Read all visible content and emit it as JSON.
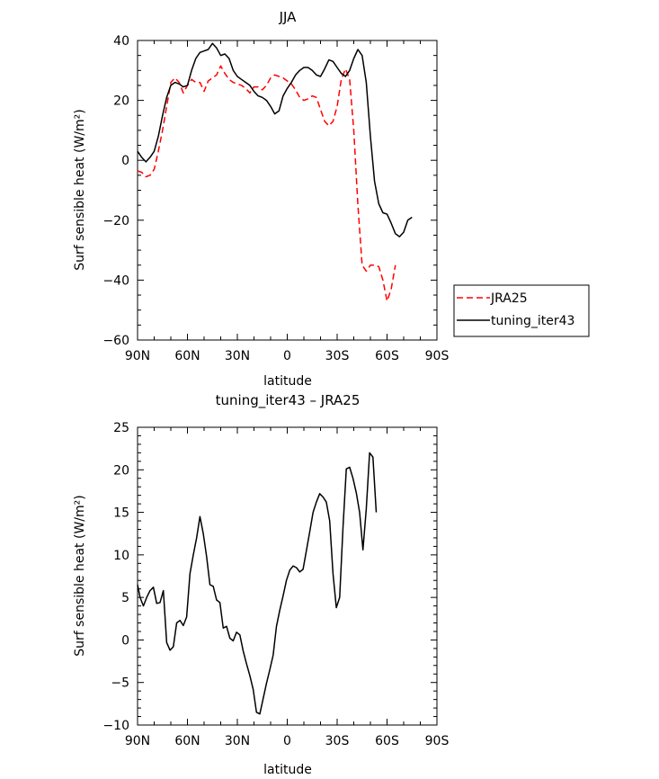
{
  "chart_data": [
    {
      "type": "line",
      "title": "JJA",
      "xlabel": "latitude",
      "ylabel": "Surf sensible heat (W/m²)",
      "xlim": [
        90,
        -90
      ],
      "ylim": [
        -60,
        40
      ],
      "x_ticks": [
        {
          "value": 90,
          "label": "90N"
        },
        {
          "value": 60,
          "label": "60N"
        },
        {
          "value": 30,
          "label": "30N"
        },
        {
          "value": 0,
          "label": "0"
        },
        {
          "value": -30,
          "label": "30S"
        },
        {
          "value": -60,
          "label": "60S"
        },
        {
          "value": -90,
          "label": "90S"
        }
      ],
      "y_ticks": [
        40,
        20,
        0,
        -20,
        -40,
        -60
      ],
      "legend_position": "right",
      "series": [
        {
          "name": "JRA25",
          "color": "#ff0000",
          "dash": "dashed",
          "points": [
            [
              90,
              -3.5
            ],
            [
              87.5,
              -4
            ],
            [
              85,
              -5.5
            ],
            [
              82.5,
              -5
            ],
            [
              80,
              -3
            ],
            [
              77.5,
              3
            ],
            [
              75,
              10
            ],
            [
              72.5,
              18
            ],
            [
              70,
              26
            ],
            [
              67.5,
              27.5
            ],
            [
              65,
              26
            ],
            [
              62.5,
              22.5
            ],
            [
              60,
              25
            ],
            [
              57.5,
              27
            ],
            [
              55,
              26
            ],
            [
              52.5,
              26
            ],
            [
              50,
              23
            ],
            [
              47.5,
              26.5
            ],
            [
              45,
              27.5
            ],
            [
              42.5,
              28.5
            ],
            [
              40,
              31.5
            ],
            [
              37.5,
              29
            ],
            [
              35,
              27
            ],
            [
              32.5,
              26
            ],
            [
              30,
              25.5
            ],
            [
              27.5,
              25
            ],
            [
              25,
              24
            ],
            [
              22.5,
              22.5
            ],
            [
              20,
              24.5
            ],
            [
              17.5,
              24.5
            ],
            [
              15,
              23.5
            ],
            [
              12.5,
              25
            ],
            [
              10,
              27.5
            ],
            [
              7.5,
              28.5
            ],
            [
              5,
              28
            ],
            [
              2.5,
              27.5
            ],
            [
              0,
              26.5
            ],
            [
              -2.5,
              25.5
            ],
            [
              -5,
              23.5
            ],
            [
              -7.5,
              21
            ],
            [
              -10,
              20
            ],
            [
              -12.5,
              20.5
            ],
            [
              -15,
              21.5
            ],
            [
              -17.5,
              21
            ],
            [
              -20,
              17
            ],
            [
              -22.5,
              13
            ],
            [
              -25,
              11.5
            ],
            [
              -27.5,
              13
            ],
            [
              -30,
              18
            ],
            [
              -32.5,
              27
            ],
            [
              -35,
              30.5
            ],
            [
              -37.5,
              27
            ],
            [
              -40,
              10
            ],
            [
              -42.5,
              -15
            ],
            [
              -45,
              -35
            ],
            [
              -47.5,
              -37
            ],
            [
              -50,
              -35
            ],
            [
              -52.5,
              -35
            ],
            [
              -55,
              -35.5
            ],
            [
              -57.5,
              -40
            ],
            [
              -60,
              -47
            ],
            [
              -62.5,
              -43
            ],
            [
              -65,
              -35
            ]
          ]
        },
        {
          "name": "tuning_iter43",
          "color": "#000000",
          "dash": "solid",
          "points": [
            [
              90,
              3
            ],
            [
              87.5,
              1
            ],
            [
              85,
              -0.5
            ],
            [
              82.5,
              1
            ],
            [
              80,
              3
            ],
            [
              77.5,
              8
            ],
            [
              75,
              15
            ],
            [
              72.5,
              21
            ],
            [
              70,
              25
            ],
            [
              67.5,
              26
            ],
            [
              65,
              25.5
            ],
            [
              62.5,
              24.5
            ],
            [
              60,
              25
            ],
            [
              57.5,
              30
            ],
            [
              55,
              34
            ],
            [
              52.5,
              36
            ],
            [
              50,
              36.5
            ],
            [
              47.5,
              37
            ],
            [
              45,
              39
            ],
            [
              42.5,
              37.5
            ],
            [
              40,
              35
            ],
            [
              37.5,
              35.5
            ],
            [
              35,
              34
            ],
            [
              32.5,
              30
            ],
            [
              30,
              28
            ],
            [
              27.5,
              27
            ],
            [
              25,
              26
            ],
            [
              22.5,
              25
            ],
            [
              20,
              23
            ],
            [
              17.5,
              21.5
            ],
            [
              15,
              21
            ],
            [
              12.5,
              20
            ],
            [
              10,
              18
            ],
            [
              7.5,
              15.5
            ],
            [
              5,
              16.5
            ],
            [
              2.5,
              21.5
            ],
            [
              0,
              24
            ],
            [
              -2.5,
              26
            ],
            [
              -5,
              28.5
            ],
            [
              -7.5,
              30
            ],
            [
              -10,
              31
            ],
            [
              -12.5,
              31
            ],
            [
              -15,
              30
            ],
            [
              -17.5,
              28.5
            ],
            [
              -20,
              28
            ],
            [
              -22.5,
              30.5
            ],
            [
              -25,
              33.5
            ],
            [
              -27.5,
              33
            ],
            [
              -30,
              31
            ],
            [
              -32.5,
              29
            ],
            [
              -35,
              28
            ],
            [
              -37.5,
              30
            ],
            [
              -40,
              34
            ],
            [
              -42.5,
              37
            ],
            [
              -45,
              35
            ],
            [
              -47.5,
              26
            ],
            [
              -50,
              8
            ],
            [
              -52.5,
              -7
            ],
            [
              -55,
              -14.5
            ],
            [
              -57.5,
              -17.5
            ],
            [
              -60,
              -18
            ],
            [
              -62.5,
              -21
            ],
            [
              -65,
              -24.5
            ],
            [
              -67.5,
              -25.5
            ],
            [
              -70,
              -24
            ],
            [
              -72.5,
              -20
            ],
            [
              -75,
              -19
            ]
          ]
        }
      ]
    },
    {
      "type": "line",
      "title": "tuning_iter43 – JRA25",
      "xlabel": "latitude",
      "ylabel": "Surf sensible heat (W/m²)",
      "xlim": [
        90,
        -90
      ],
      "ylim": [
        -10,
        25
      ],
      "x_ticks": [
        {
          "value": 90,
          "label": "90N"
        },
        {
          "value": 60,
          "label": "60N"
        },
        {
          "value": 30,
          "label": "30N"
        },
        {
          "value": 0,
          "label": "0"
        },
        {
          "value": -30,
          "label": "30S"
        },
        {
          "value": -60,
          "label": "60S"
        },
        {
          "value": -90,
          "label": "90S"
        }
      ],
      "y_ticks": [
        25,
        20,
        15,
        10,
        5,
        0,
        -5,
        -10
      ],
      "series": [
        {
          "color": "#000000",
          "dash": "solid",
          "points": [
            [
              90,
              6.5
            ],
            [
              88.5,
              5
            ],
            [
              86.5,
              4
            ],
            [
              84.5,
              5
            ],
            [
              82.5,
              5.8
            ],
            [
              80.5,
              6.2
            ],
            [
              78.5,
              4.3
            ],
            [
              76.5,
              4.4
            ],
            [
              74.5,
              5.8
            ],
            [
              72.5,
              -0.3
            ],
            [
              70.5,
              -1.2
            ],
            [
              68.5,
              -0.8
            ],
            [
              66.5,
              2
            ],
            [
              64.5,
              2.3
            ],
            [
              62.5,
              1.7
            ],
            [
              60.5,
              2.7
            ],
            [
              58.5,
              7.8
            ],
            [
              56.5,
              10
            ],
            [
              54.5,
              12
            ],
            [
              52.5,
              14.5
            ],
            [
              50.5,
              12.5
            ],
            [
              48.5,
              9.8
            ],
            [
              46.5,
              6.5
            ],
            [
              44.5,
              6.3
            ],
            [
              42.5,
              4.7
            ],
            [
              40.5,
              4.4
            ],
            [
              38.5,
              1.4
            ],
            [
              36.5,
              1.6
            ],
            [
              34.5,
              0.2
            ],
            [
              32.5,
              -0.1
            ],
            [
              30.5,
              0.9
            ],
            [
              28.5,
              0.6
            ],
            [
              26.5,
              -1.3
            ],
            [
              24.5,
              -2.8
            ],
            [
              22.5,
              -4.2
            ],
            [
              20.5,
              -5.8
            ],
            [
              18.5,
              -8.5
            ],
            [
              16.5,
              -8.7
            ],
            [
              14.5,
              -6.9
            ],
            [
              12.5,
              -5.1
            ],
            [
              10.5,
              -3.5
            ],
            [
              8.5,
              -1.8
            ],
            [
              6.5,
              1.6
            ],
            [
              4.5,
              3.5
            ],
            [
              2.5,
              5.2
            ],
            [
              0.5,
              7
            ],
            [
              -1.5,
              8.2
            ],
            [
              -3.5,
              8.7
            ],
            [
              -5.5,
              8.5
            ],
            [
              -7.5,
              8
            ],
            [
              -9.5,
              8.3
            ],
            [
              -11.5,
              10.5
            ],
            [
              -13.5,
              12.7
            ],
            [
              -15.5,
              15
            ],
            [
              -17.5,
              16.2
            ],
            [
              -19.5,
              17.2
            ],
            [
              -21.5,
              16.8
            ],
            [
              -23.5,
              16.2
            ],
            [
              -25.5,
              14
            ],
            [
              -27.5,
              7.8
            ],
            [
              -29.5,
              3.8
            ],
            [
              -31.5,
              5
            ],
            [
              -33.5,
              13.2
            ],
            [
              -35.5,
              20.1
            ],
            [
              -37.5,
              20.3
            ],
            [
              -39.5,
              19
            ],
            [
              -41.5,
              17.3
            ],
            [
              -43.5,
              15
            ],
            [
              -45.5,
              10.6
            ],
            [
              -47.5,
              15.4
            ],
            [
              -49.5,
              22
            ],
            [
              -51.5,
              21.5
            ],
            [
              -53.5,
              15
            ]
          ]
        }
      ]
    }
  ]
}
